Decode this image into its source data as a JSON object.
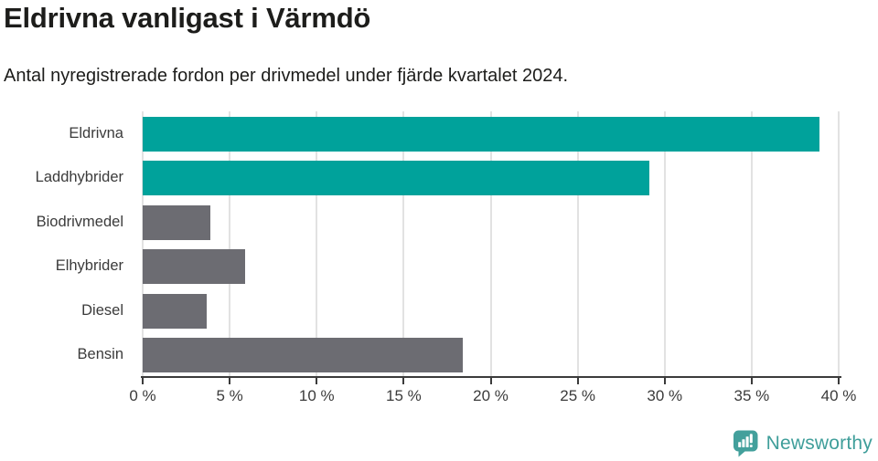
{
  "header": {
    "title": "Eldrivna vanligast i Värmdö",
    "subtitle": "Antal nyregistrerade fordon per drivmedel under fjärde kvartalet 2024."
  },
  "chart_data": {
    "type": "bar",
    "orientation": "horizontal",
    "title": "Eldrivna vanligast i Värmdö",
    "subtitle": "Antal nyregistrerade fordon per drivmedel under fjärde kvartalet 2024.",
    "categories": [
      "Eldrivna",
      "Laddhybrider",
      "Biodrivmedel",
      "Elhybrider",
      "Diesel",
      "Bensin"
    ],
    "values": [
      38.9,
      29.1,
      3.9,
      5.9,
      3.7,
      18.4
    ],
    "value_unit": "%",
    "highlighted": [
      true,
      true,
      false,
      false,
      false,
      false
    ],
    "xlim": [
      0,
      40
    ],
    "x_ticks": [
      0,
      5,
      10,
      15,
      20,
      25,
      30,
      35,
      40
    ],
    "x_tick_labels": [
      "0 %",
      "5 %",
      "10 %",
      "15 %",
      "20 %",
      "25 %",
      "30 %",
      "35 %",
      "40 %"
    ],
    "grid": true,
    "legend": "none",
    "colors": {
      "highlight": "#00a29b",
      "default": "#6c6c72",
      "gridline": "#e2e2e2",
      "axis": "#3b3b3b",
      "label_text": "#3b3b3b"
    }
  },
  "footer": {
    "brand": "Newsworthy",
    "brand_text_color": "#3f9e9a",
    "brand_icon_color": "#43a09c"
  }
}
